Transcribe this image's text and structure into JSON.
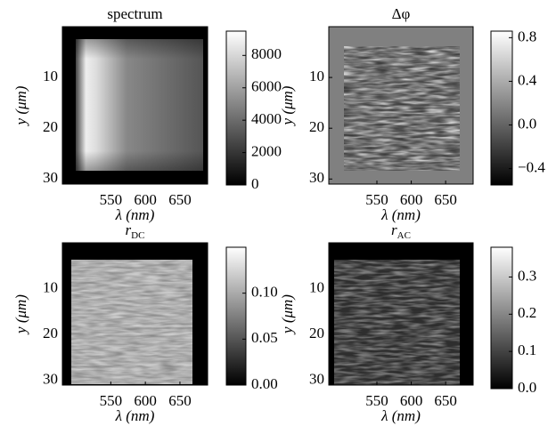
{
  "chart_data": [
    {
      "type": "heatmap",
      "title": "spectrum",
      "x_label": "λ (nm)",
      "y_label": "y (μm)",
      "colormap": "gray",
      "xlim": [
        480,
        690
      ],
      "xticks": [
        550,
        600,
        650
      ],
      "ylim": [
        0,
        31
      ],
      "yticks": [
        10,
        20,
        30
      ],
      "colorbar": {
        "clim": [
          0,
          9500
        ],
        "ticks": [
          0,
          2000,
          4000,
          6000,
          8000
        ]
      }
    },
    {
      "type": "heatmap",
      "title": "Δφ",
      "x_label": "λ (nm)",
      "y_label": "y (μm)",
      "colormap": "gray",
      "xlim": [
        480,
        690
      ],
      "xticks": [
        550,
        600,
        650
      ],
      "ylim": [
        0,
        31
      ],
      "yticks": [
        10,
        20,
        30
      ],
      "colorbar": {
        "clim": [
          -0.55,
          0.86
        ],
        "ticks": [
          {
            "value": -0.4,
            "label": "−0.4"
          },
          {
            "value": 0,
            "label": "0.0"
          },
          0.4,
          0.8
        ]
      }
    },
    {
      "type": "heatmap",
      "title": "r",
      "title_subscript": "DC",
      "x_label": "λ (nm)",
      "y_label": "y (μm)",
      "colormap": "gray",
      "xlim": [
        480,
        690
      ],
      "xticks": [
        550,
        600,
        650
      ],
      "ylim": [
        0,
        31
      ],
      "yticks": [
        10,
        20,
        30
      ],
      "colorbar": {
        "clim": [
          0,
          0.15
        ],
        "ticks": [
          {
            "value": 0,
            "label": "0.00"
          },
          0.05,
          {
            "value": 0.1,
            "label": "0.10"
          }
        ]
      }
    },
    {
      "type": "heatmap",
      "title": "r",
      "title_subscript": "AC",
      "x_label": "λ (nm)",
      "y_label": "y (μm)",
      "colormap": "gray",
      "xlim": [
        480,
        690
      ],
      "xticks": [
        550,
        600,
        650
      ],
      "ylim": [
        0,
        31
      ],
      "yticks": [
        10,
        20,
        30
      ],
      "colorbar": {
        "clim": [
          0,
          0.38
        ],
        "ticks": [
          {
            "value": 0,
            "label": "0.0"
          },
          0.1,
          0.2,
          0.3
        ]
      }
    }
  ]
}
